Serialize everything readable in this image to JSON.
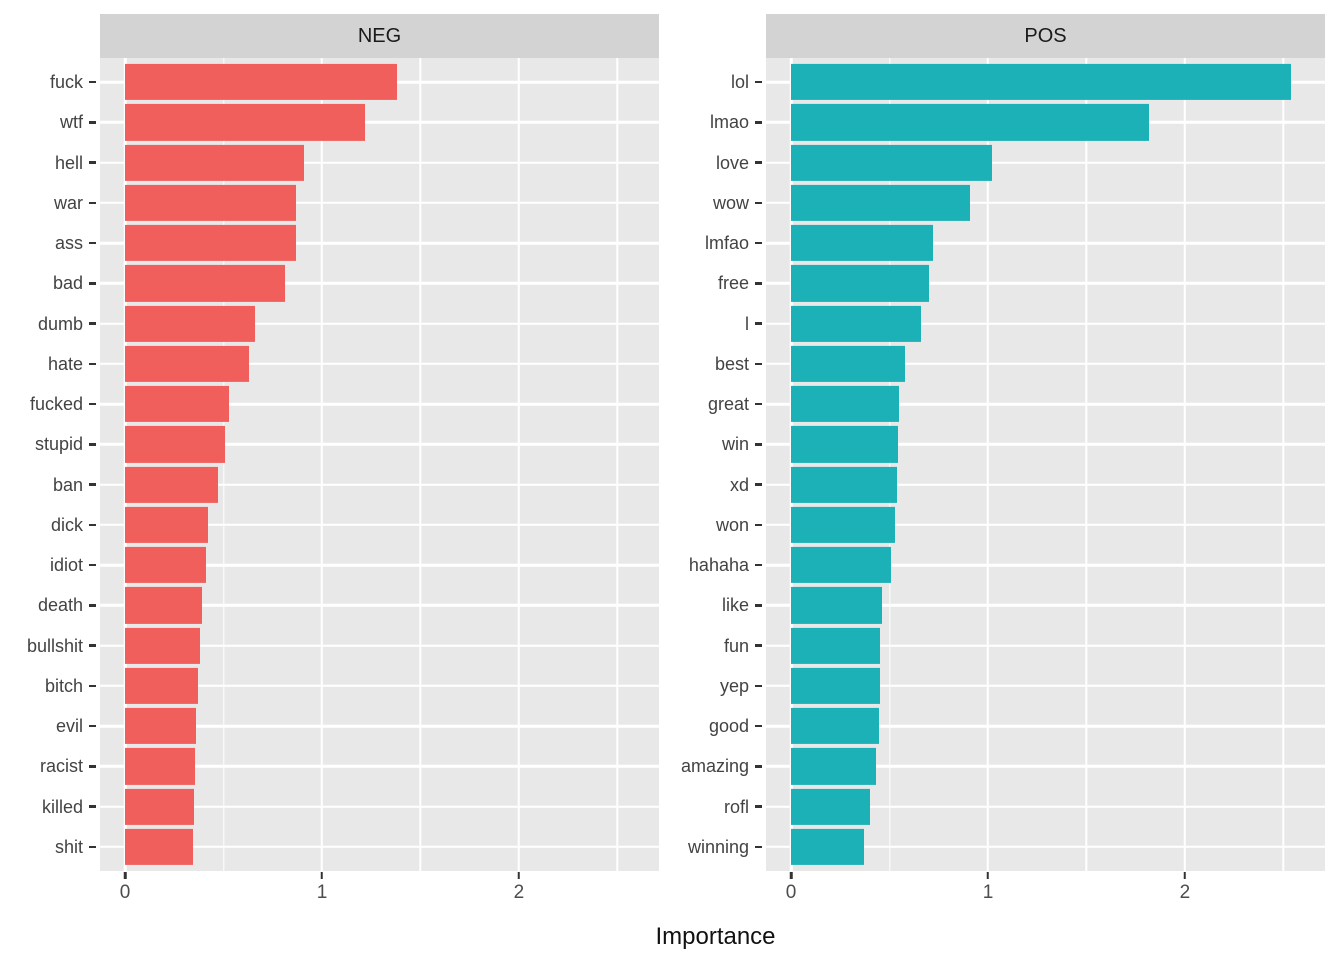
{
  "chart_data": {
    "type": "bar",
    "orientation": "horizontal",
    "title": "",
    "xlabel": "Importance",
    "ylabel": "",
    "xlim": [
      -0.127,
      2.711
    ],
    "x_ticks": [
      0,
      1,
      2
    ],
    "x_tick_labels": [
      "0",
      "1",
      "2"
    ],
    "x_minor_ticks": [
      0.5,
      1.5,
      2.5
    ],
    "grid": "on",
    "legend": "none",
    "panels": [
      {
        "title": "NEG",
        "bar_color": "#F15F5C",
        "categories": [
          "fuck",
          "wtf",
          "hell",
          "war",
          "ass",
          "bad",
          "dumb",
          "hate",
          "fucked",
          "stupid",
          "ban",
          "dick",
          "idiot",
          "death",
          "bullshit",
          "bitch",
          "evil",
          "racist",
          "killed",
          "shit"
        ],
        "values": [
          1.38,
          1.22,
          0.91,
          0.87,
          0.87,
          0.81,
          0.66,
          0.63,
          0.53,
          0.51,
          0.47,
          0.42,
          0.41,
          0.39,
          0.38,
          0.37,
          0.36,
          0.355,
          0.35,
          0.345
        ]
      },
      {
        "title": "POS",
        "bar_color": "#1BB1B6",
        "categories": [
          "lol",
          "lmao",
          "love",
          "wow",
          "lmfao",
          "free",
          "l",
          "best",
          "great",
          "win",
          "xd",
          "won",
          "hahaha",
          "like",
          "fun",
          "yep",
          "good",
          "amazing",
          "rofl",
          "winning"
        ],
        "values": [
          2.54,
          1.82,
          1.02,
          0.91,
          0.72,
          0.7,
          0.66,
          0.58,
          0.55,
          0.545,
          0.54,
          0.53,
          0.51,
          0.46,
          0.452,
          0.45,
          0.445,
          0.43,
          0.4,
          0.37
        ]
      }
    ],
    "colors": {
      "panel_bg": "#E8E8E8",
      "strip_bg": "#D3D3D3",
      "strip_text": "#1A1A1A",
      "grid_line": "#FFFFFF",
      "axis_text": "#4D4D4D",
      "tick_mark": "#333333",
      "neg_bar": "#F15F5C",
      "pos_bar": "#1BB1B6"
    }
  }
}
